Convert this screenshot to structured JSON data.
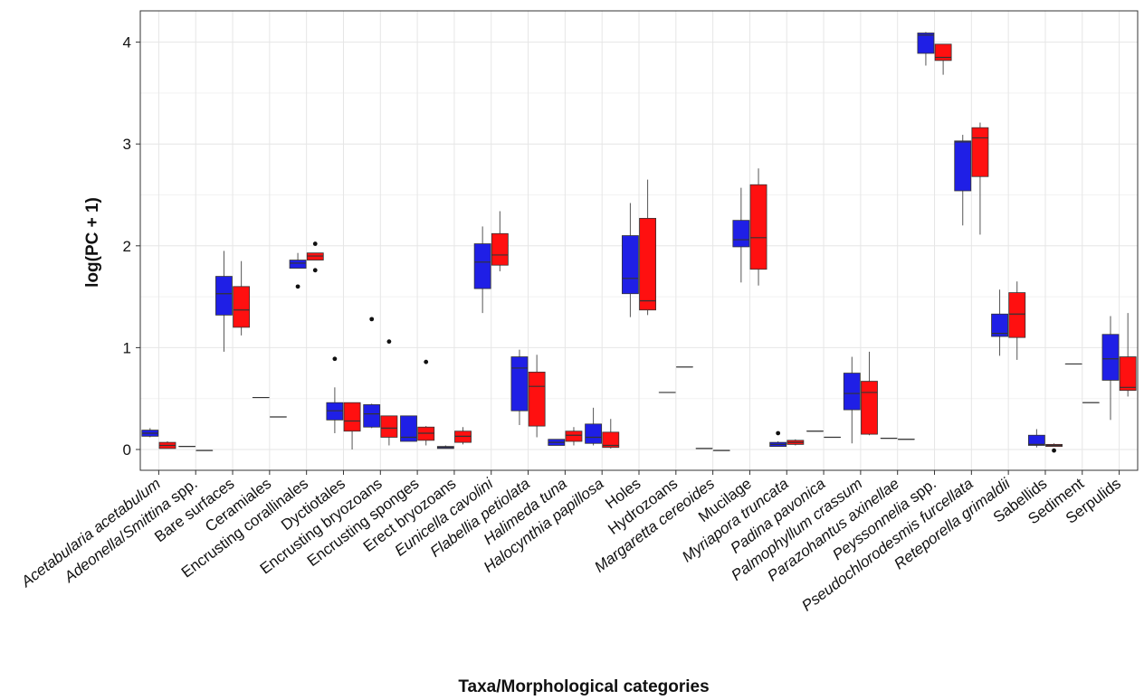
{
  "chart_data": {
    "type": "boxplot",
    "xlabel": "Taxa/Morphological categories",
    "ylabel": "log(PC + 1)",
    "ylim": [
      -0.2,
      4.32
    ],
    "yticks": [
      0,
      1,
      2,
      3,
      4
    ],
    "grid": true,
    "legend": "none",
    "colors": [
      "#1f1fe6",
      "#ff1010"
    ],
    "categories": [
      {
        "name": "Acetabularia acetabulum",
        "italic": true
      },
      {
        "name": "Adeonella/Smittina spp.",
        "italic": true,
        "parts": [
          [
            "Adeonella",
            true
          ],
          [
            "/",
            false
          ],
          [
            "Smittina",
            true
          ],
          [
            " spp.",
            false
          ]
        ]
      },
      {
        "name": "Bare surfaces",
        "italic": false
      },
      {
        "name": "Ceramiales",
        "italic": false
      },
      {
        "name": "Encrusting corallinales",
        "italic": false
      },
      {
        "name": "Dyctiotales",
        "italic": false
      },
      {
        "name": "Encrusting bryozoans",
        "italic": false
      },
      {
        "name": "Encrusting sponges",
        "italic": false
      },
      {
        "name": "Erect bryozoans",
        "italic": false
      },
      {
        "name": "Eunicella cavolini",
        "italic": true
      },
      {
        "name": "Flabellia petiolata",
        "italic": true
      },
      {
        "name": "Halimeda tuna",
        "italic": true
      },
      {
        "name": "Halocynthia papillosa",
        "italic": true
      },
      {
        "name": "Holes",
        "italic": false
      },
      {
        "name": "Hydrozoans",
        "italic": false
      },
      {
        "name": "Margaretta cereoides",
        "italic": true
      },
      {
        "name": "Mucilage",
        "italic": false
      },
      {
        "name": "Myriapora truncata",
        "italic": true
      },
      {
        "name": "Padina pavonica",
        "italic": true
      },
      {
        "name": "Palmophyllum crassum",
        "italic": true
      },
      {
        "name": "Parazohantus axinellae",
        "italic": true
      },
      {
        "name": "Peyssonnelia spp.",
        "italic": true,
        "parts": [
          [
            "Peyssonnelia",
            true
          ],
          [
            " spp.",
            false
          ]
        ]
      },
      {
        "name": "Pseudochlorodesmis furcellata",
        "italic": true
      },
      {
        "name": "Reteporella grimaldii",
        "italic": true
      },
      {
        "name": "Sabellids",
        "italic": false
      },
      {
        "name": "Sediment",
        "italic": false
      },
      {
        "name": "Serpulids",
        "italic": false
      }
    ],
    "series": [
      {
        "color": "#1f1fe6",
        "boxes": [
          {
            "min": 0.12,
            "q1": 0.13,
            "med": 0.16,
            "q3": 0.19,
            "max": 0.21,
            "outliers": []
          },
          {
            "min": 0.03,
            "q1": 0.03,
            "med": 0.03,
            "q3": 0.03,
            "max": 0.03,
            "outliers": []
          },
          {
            "min": 0.96,
            "q1": 1.32,
            "med": 1.53,
            "q3": 1.7,
            "max": 1.95,
            "outliers": []
          },
          {
            "min": 0.51,
            "q1": 0.51,
            "med": 0.51,
            "q3": 0.51,
            "max": 0.51,
            "outliers": []
          },
          {
            "min": 1.78,
            "q1": 1.78,
            "med": 1.83,
            "q3": 1.86,
            "max": 1.93,
            "outliers": [
              1.6
            ]
          },
          {
            "min": 0.16,
            "q1": 0.29,
            "med": 0.38,
            "q3": 0.46,
            "max": 0.61,
            "outliers": [
              0.89
            ]
          },
          {
            "min": 0.21,
            "q1": 0.22,
            "med": 0.35,
            "q3": 0.44,
            "max": 0.45,
            "outliers": [
              1.28
            ]
          },
          {
            "min": 0.08,
            "q1": 0.08,
            "med": 0.12,
            "q3": 0.33,
            "max": 0.33,
            "outliers": []
          },
          {
            "min": 0.01,
            "q1": 0.01,
            "med": 0.02,
            "q3": 0.03,
            "max": 0.04,
            "outliers": []
          },
          {
            "min": 1.34,
            "q1": 1.58,
            "med": 1.84,
            "q3": 2.02,
            "max": 2.19,
            "outliers": []
          },
          {
            "min": 0.24,
            "q1": 0.38,
            "med": 0.8,
            "q3": 0.91,
            "max": 0.98,
            "outliers": []
          },
          {
            "min": 0.04,
            "q1": 0.04,
            "med": 0.07,
            "q3": 0.1,
            "max": 0.1,
            "outliers": []
          },
          {
            "min": 0.04,
            "q1": 0.06,
            "med": 0.12,
            "q3": 0.25,
            "max": 0.41,
            "outliers": []
          },
          {
            "min": 1.3,
            "q1": 1.53,
            "med": 1.68,
            "q3": 2.1,
            "max": 2.42,
            "outliers": []
          },
          {
            "min": 0.56,
            "q1": 0.56,
            "med": 0.56,
            "q3": 0.56,
            "max": 0.56,
            "outliers": []
          },
          {
            "min": 0.01,
            "q1": 0.01,
            "med": 0.01,
            "q3": 0.01,
            "max": 0.01,
            "outliers": []
          },
          {
            "min": 1.64,
            "q1": 1.99,
            "med": 2.06,
            "q3": 2.25,
            "max": 2.57,
            "outliers": []
          },
          {
            "min": 0.03,
            "q1": 0.03,
            "med": 0.05,
            "q3": 0.07,
            "max": 0.08,
            "outliers": [
              0.16
            ]
          },
          {
            "min": 0.18,
            "q1": 0.18,
            "med": 0.18,
            "q3": 0.18,
            "max": 0.18,
            "outliers": []
          },
          {
            "min": 0.06,
            "q1": 0.39,
            "med": 0.55,
            "q3": 0.75,
            "max": 0.91,
            "outliers": []
          },
          {
            "min": 0.11,
            "q1": 0.11,
            "med": 0.11,
            "q3": 0.11,
            "max": 0.11,
            "outliers": []
          },
          {
            "min": 3.77,
            "q1": 3.89,
            "med": 4.07,
            "q3": 4.09,
            "max": 4.1,
            "outliers": []
          },
          {
            "min": 2.2,
            "q1": 2.54,
            "med": 3.02,
            "q3": 3.03,
            "max": 3.09,
            "outliers": []
          },
          {
            "min": 0.92,
            "q1": 1.11,
            "med": 1.14,
            "q3": 1.33,
            "max": 1.57,
            "outliers": []
          },
          {
            "min": 0.02,
            "q1": 0.04,
            "med": 0.05,
            "q3": 0.14,
            "max": 0.2,
            "outliers": []
          },
          {
            "min": 0.84,
            "q1": 0.84,
            "med": 0.84,
            "q3": 0.84,
            "max": 0.84,
            "outliers": []
          },
          {
            "min": 0.29,
            "q1": 0.68,
            "med": 0.89,
            "q3": 1.13,
            "max": 1.31,
            "outliers": []
          }
        ]
      },
      {
        "color": "#ff1010",
        "boxes": [
          {
            "min": 0.01,
            "q1": 0.01,
            "med": 0.04,
            "q3": 0.07,
            "max": 0.08,
            "outliers": []
          },
          {
            "min": -0.01,
            "q1": -0.01,
            "med": -0.01,
            "q3": -0.01,
            "max": -0.01,
            "outliers": []
          },
          {
            "min": 1.12,
            "q1": 1.2,
            "med": 1.37,
            "q3": 1.6,
            "max": 1.85,
            "outliers": []
          },
          {
            "min": 0.32,
            "q1": 0.32,
            "med": 0.32,
            "q3": 0.32,
            "max": 0.32,
            "outliers": []
          },
          {
            "min": 1.86,
            "q1": 1.86,
            "med": 1.9,
            "q3": 1.93,
            "max": 1.93,
            "outliers": [
              2.02,
              1.76
            ]
          },
          {
            "min": 0.0,
            "q1": 0.18,
            "med": 0.28,
            "q3": 0.46,
            "max": 0.46,
            "outliers": []
          },
          {
            "min": 0.04,
            "q1": 0.12,
            "med": 0.21,
            "q3": 0.33,
            "max": 0.33,
            "outliers": [
              1.06
            ]
          },
          {
            "min": 0.04,
            "q1": 0.09,
            "med": 0.16,
            "q3": 0.22,
            "max": 0.23,
            "outliers": [
              0.86
            ]
          },
          {
            "min": 0.05,
            "q1": 0.07,
            "med": 0.13,
            "q3": 0.18,
            "max": 0.22,
            "outliers": []
          },
          {
            "min": 1.75,
            "q1": 1.81,
            "med": 1.91,
            "q3": 2.12,
            "max": 2.34,
            "outliers": []
          },
          {
            "min": 0.12,
            "q1": 0.23,
            "med": 0.62,
            "q3": 0.76,
            "max": 0.93,
            "outliers": []
          },
          {
            "min": 0.04,
            "q1": 0.08,
            "med": 0.14,
            "q3": 0.18,
            "max": 0.22,
            "outliers": []
          },
          {
            "min": 0.01,
            "q1": 0.02,
            "med": 0.04,
            "q3": 0.17,
            "max": 0.3,
            "outliers": []
          },
          {
            "min": 1.32,
            "q1": 1.37,
            "med": 1.46,
            "q3": 2.27,
            "max": 2.65,
            "outliers": []
          },
          {
            "min": 0.81,
            "q1": 0.81,
            "med": 0.81,
            "q3": 0.81,
            "max": 0.81,
            "outliers": []
          },
          {
            "min": -0.01,
            "q1": -0.01,
            "med": -0.01,
            "q3": -0.01,
            "max": -0.01,
            "outliers": []
          },
          {
            "min": 1.61,
            "q1": 1.77,
            "med": 2.08,
            "q3": 2.6,
            "max": 2.76,
            "outliers": []
          },
          {
            "min": 0.04,
            "q1": 0.05,
            "med": 0.07,
            "q3": 0.09,
            "max": 0.1,
            "outliers": []
          },
          {
            "min": 0.12,
            "q1": 0.12,
            "med": 0.12,
            "q3": 0.12,
            "max": 0.12,
            "outliers": []
          },
          {
            "min": 0.14,
            "q1": 0.15,
            "med": 0.56,
            "q3": 0.67,
            "max": 0.96,
            "outliers": []
          },
          {
            "min": 0.1,
            "q1": 0.1,
            "med": 0.1,
            "q3": 0.1,
            "max": 0.1,
            "outliers": []
          },
          {
            "min": 3.68,
            "q1": 3.82,
            "med": 3.85,
            "q3": 3.98,
            "max": 3.98,
            "outliers": []
          },
          {
            "min": 2.11,
            "q1": 2.68,
            "med": 3.06,
            "q3": 3.16,
            "max": 3.21,
            "outliers": []
          },
          {
            "min": 0.88,
            "q1": 1.1,
            "med": 1.33,
            "q3": 1.54,
            "max": 1.65,
            "outliers": []
          },
          {
            "min": 0.03,
            "q1": 0.03,
            "med": 0.04,
            "q3": 0.05,
            "max": 0.06,
            "outliers": [
              -0.01
            ]
          },
          {
            "min": 0.46,
            "q1": 0.46,
            "med": 0.46,
            "q3": 0.46,
            "max": 0.46,
            "outliers": []
          },
          {
            "min": 0.52,
            "q1": 0.58,
            "med": 0.61,
            "q3": 0.91,
            "max": 1.34,
            "outliers": []
          }
        ]
      }
    ]
  }
}
